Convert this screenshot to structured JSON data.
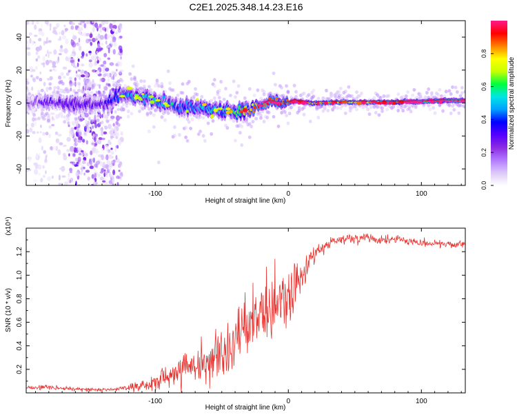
{
  "figure_title": "C2E1.2025.348.14.23.E16",
  "colors": {
    "snr_line": "#e8302c",
    "axis": "#000000",
    "colormap": [
      "#ffffff",
      "#dcc8f8",
      "#b27aff",
      "#8a2be2",
      "#5500ff",
      "#0000ff",
      "#00a0ff",
      "#00e5e5",
      "#00ff40",
      "#c8ff00",
      "#ffff00",
      "#ff8000",
      "#ff0000",
      "#ff1a8c"
    ]
  },
  "chart_data": [
    {
      "type": "heatmap",
      "title": "C2E1.2025.348.14.23.E16",
      "xlabel": "Height of straight line (km)",
      "ylabel": "Frequency (Hz)",
      "xlim": [
        -197,
        133
      ],
      "ylim": [
        -50,
        50
      ],
      "x_ticks": [
        -100,
        0,
        100
      ],
      "x_tick_labels": [
        "-100",
        "0",
        "100"
      ],
      "y_ticks": [
        -40,
        -20,
        0,
        20,
        40
      ],
      "y_tick_labels": [
        "-40",
        "-20",
        "0",
        "20",
        "40"
      ],
      "colorbar": {
        "label": "Normalized spectral amplitude",
        "range": [
          0,
          1
        ],
        "ticks": [
          0,
          0.2,
          0.4,
          0.6,
          0.8
        ],
        "tick_labels": [
          "0.0",
          "0.2",
          "0.4",
          "0.6",
          "0.8"
        ]
      },
      "ridge": {
        "x": [
          -197,
          -180,
          -160,
          -140,
          -125,
          -110,
          -100,
          -90,
          -80,
          -70,
          -60,
          -50,
          -40,
          -30,
          -20,
          -15,
          -10,
          0,
          5,
          10,
          20,
          40,
          60,
          80,
          100,
          120,
          133
        ],
        "freq": [
          0,
          0.5,
          -1,
          0,
          5,
          4,
          1.5,
          -1,
          -3.5,
          -2.5,
          -3,
          -4.5,
          -5,
          -4,
          -1.5,
          1,
          0.5,
          0,
          1.5,
          0.5,
          0,
          0.5,
          0.5,
          0.5,
          1,
          1.5,
          1.5
        ],
        "amplitude": [
          0.2,
          0.3,
          0.35,
          0.3,
          0.5,
          0.55,
          0.55,
          0.5,
          0.45,
          0.55,
          0.6,
          0.5,
          0.7,
          0.75,
          0.8,
          0.9,
          0.88,
          0.85,
          0.85,
          0.8,
          0.75,
          0.75,
          0.75,
          0.8,
          0.9,
          0.95,
          0.95
        ]
      },
      "noise_region_x": [
        -165,
        -125
      ]
    },
    {
      "type": "line",
      "xlabel": "Height of straight line (km)",
      "ylabel": "SNR (10 * v/v)",
      "y_scale_label": "(x10⁴)",
      "xlim": [
        -197,
        133
      ],
      "ylim": [
        0,
        1.4
      ],
      "x_ticks": [
        -100,
        0,
        100
      ],
      "x_tick_labels": [
        "-100",
        "0",
        "100"
      ],
      "y_ticks": [
        0.2,
        0.4,
        0.6,
        0.8,
        1.0,
        1.2
      ],
      "y_tick_labels": [
        "0.2",
        "0.4",
        "0.6",
        "0.8",
        "1.0",
        "1.2"
      ],
      "series": [
        {
          "name": "SNR",
          "x": [
            -197,
            -180,
            -160,
            -140,
            -130,
            -120,
            -110,
            -100,
            -90,
            -80,
            -70,
            -60,
            -50,
            -40,
            -30,
            -20,
            -10,
            0,
            10,
            20,
            30,
            40,
            50,
            60,
            70,
            80,
            90,
            100,
            110,
            120,
            133
          ],
          "y": [
            0.04,
            0.05,
            0.03,
            0.03,
            0.03,
            0.05,
            0.06,
            0.09,
            0.13,
            0.18,
            0.24,
            0.28,
            0.36,
            0.46,
            0.56,
            0.66,
            0.78,
            0.84,
            1.0,
            1.18,
            1.27,
            1.31,
            1.3,
            1.32,
            1.3,
            1.3,
            1.29,
            1.28,
            1.27,
            1.26,
            1.26
          ],
          "noise": [
            0.01,
            0.015,
            0.01,
            0.01,
            0.01,
            0.02,
            0.03,
            0.05,
            0.07,
            0.09,
            0.1,
            0.12,
            0.14,
            0.15,
            0.16,
            0.16,
            0.16,
            0.16,
            0.1,
            0.05,
            0.03,
            0.03,
            0.03,
            0.03,
            0.03,
            0.025,
            0.025,
            0.025,
            0.02,
            0.02,
            0.02
          ]
        }
      ]
    }
  ]
}
